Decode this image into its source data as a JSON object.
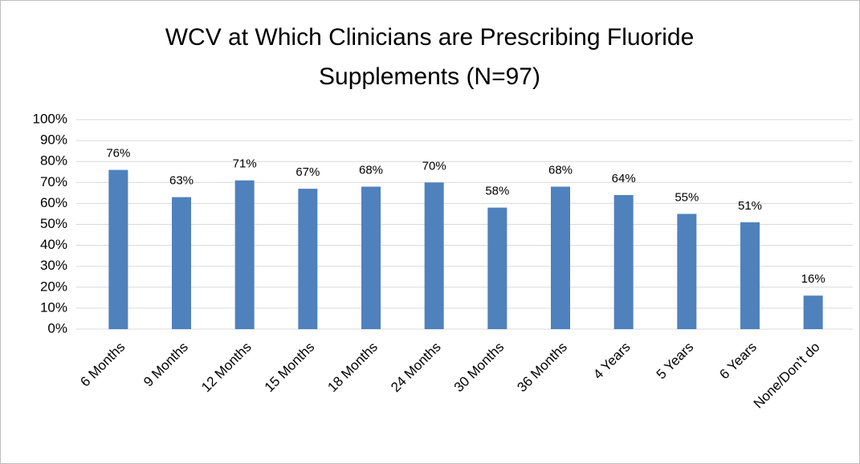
{
  "chart_data": {
    "type": "bar",
    "title": "WCV at Which Clinicians are Prescribing Fluoride Supplements (N=97)",
    "categories": [
      "6 Months",
      "9 Months",
      "12 Months",
      "15 Months",
      "18 Months",
      "24 Months",
      "30 Months",
      "36 Months",
      "4 Years",
      "5 Years",
      "6 Years",
      "None/Don't do"
    ],
    "values": [
      76,
      63,
      71,
      67,
      68,
      70,
      58,
      68,
      64,
      55,
      51,
      16
    ],
    "value_labels": [
      "76%",
      "63%",
      "71%",
      "67%",
      "68%",
      "70%",
      "58%",
      "68%",
      "64%",
      "55%",
      "51%",
      "16%"
    ],
    "color": "#4f81bd",
    "ylim": [
      0,
      100
    ],
    "yticks": [
      {
        "value": 0,
        "label": "0%"
      },
      {
        "value": 10,
        "label": "10%"
      },
      {
        "value": 20,
        "label": "20%"
      },
      {
        "value": 30,
        "label": "30%"
      },
      {
        "value": 40,
        "label": "40%"
      },
      {
        "value": 50,
        "label": "50%"
      },
      {
        "value": 60,
        "label": "60%"
      },
      {
        "value": 70,
        "label": "70%"
      },
      {
        "value": 80,
        "label": "80%"
      },
      {
        "value": 90,
        "label": "90%"
      },
      {
        "value": 100,
        "label": "100%"
      }
    ],
    "grid": true
  }
}
